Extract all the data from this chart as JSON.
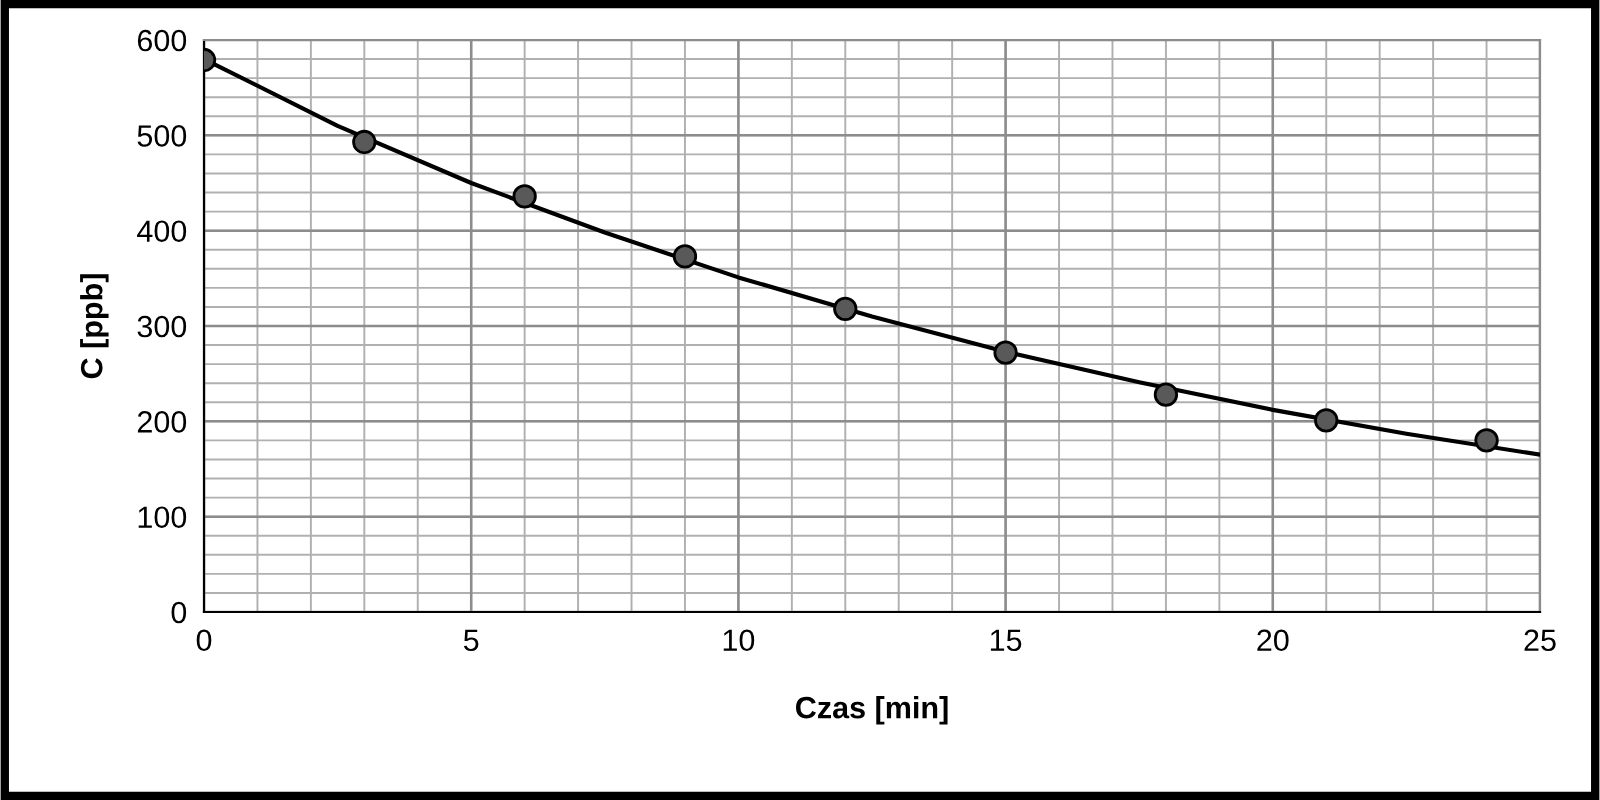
{
  "chart_data": {
    "type": "scatter",
    "xlabel": "Czas [min]",
    "ylabel": "C [ppb]",
    "series": [
      {
        "color": "#595959",
        "marker": "circle",
        "x": [
          0,
          3,
          6,
          9,
          12,
          15,
          18,
          21,
          24
        ],
        "values": [
          579,
          493,
          436,
          373,
          318,
          272,
          228,
          201,
          180
        ]
      },
      {
        "type": "line",
        "color": "#000000",
        "marker": "none",
        "line_style": "solid",
        "x": [
          0,
          2.5,
          5,
          7.5,
          10,
          12.5,
          15,
          17.5,
          20,
          22.5,
          25
        ],
        "values": [
          580,
          510,
          450,
          398,
          351,
          310,
          273,
          241,
          212,
          187,
          165
        ]
      }
    ],
    "xlim": [
      0,
      25
    ],
    "ylim": [
      0,
      600
    ],
    "xticks": [
      0,
      {
        "value": 1,
        "label": null
      },
      {
        "value": 2,
        "label": null
      },
      {
        "value": 3,
        "label": null
      },
      {
        "value": 4,
        "label": null
      },
      5,
      {
        "value": 6,
        "label": null
      },
      {
        "value": 7,
        "label": null
      },
      {
        "value": 8,
        "label": null
      },
      {
        "value": 9,
        "label": null
      },
      10,
      {
        "value": 11,
        "label": null
      },
      {
        "value": 12,
        "label": null
      },
      {
        "value": 13,
        "label": null
      },
      {
        "value": 14,
        "label": null
      },
      15,
      {
        "value": 16,
        "label": null
      },
      {
        "value": 17,
        "label": null
      },
      {
        "value": 18,
        "label": null
      },
      {
        "value": 19,
        "label": null
      },
      20,
      {
        "value": 21,
        "label": null
      },
      {
        "value": 22,
        "label": null
      },
      {
        "value": 23,
        "label": null
      },
      {
        "value": 24,
        "label": null
      },
      25
    ],
    "yticks": [
      0,
      {
        "value": 20,
        "label": null
      },
      {
        "value": 40,
        "label": null
      },
      {
        "value": 60,
        "label": null
      },
      {
        "value": 80,
        "label": null
      },
      100,
      {
        "value": 120,
        "label": null
      },
      {
        "value": 140,
        "label": null
      },
      {
        "value": 160,
        "label": null
      },
      {
        "value": 180,
        "label": null
      },
      200,
      {
        "value": 220,
        "label": null
      },
      {
        "value": 240,
        "label": null
      },
      {
        "value": 260,
        "label": null
      },
      {
        "value": 280,
        "label": null
      },
      300,
      {
        "value": 320,
        "label": null
      },
      {
        "value": 340,
        "label": null
      },
      {
        "value": 360,
        "label": null
      },
      {
        "value": 380,
        "label": null
      },
      400,
      {
        "value": 420,
        "label": null
      },
      {
        "value": 440,
        "label": null
      },
      {
        "value": 460,
        "label": null
      },
      {
        "value": 480,
        "label": null
      },
      500,
      {
        "value": 520,
        "label": null
      },
      {
        "value": 540,
        "label": null
      },
      {
        "value": 560,
        "label": null
      },
      {
        "value": 580,
        "label": null
      },
      600
    ],
    "grid": true
  }
}
